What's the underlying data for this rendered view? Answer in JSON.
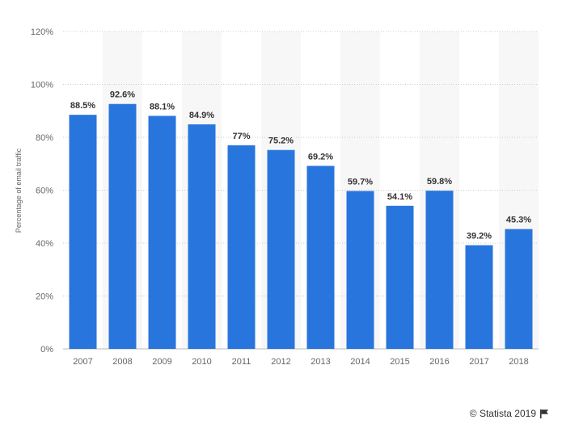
{
  "chart_data": {
    "type": "bar",
    "categories": [
      "2007",
      "2008",
      "2009",
      "2010",
      "2011",
      "2012",
      "2013",
      "2014",
      "2015",
      "2016",
      "2017",
      "2018"
    ],
    "values": [
      88.5,
      92.6,
      88.1,
      84.9,
      77,
      75.2,
      69.2,
      59.7,
      54.1,
      59.8,
      39.2,
      45.3
    ],
    "value_labels": [
      "88.5%",
      "92.6%",
      "88.1%",
      "84.9%",
      "77%",
      "75.2%",
      "69.2%",
      "59.7%",
      "54.1%",
      "59.8%",
      "39.2%",
      "45.3%"
    ],
    "ylabel": "Percentage of email traffic",
    "xlabel": "",
    "ylim": [
      0,
      120
    ],
    "yticks": [
      0,
      20,
      40,
      60,
      80,
      100,
      120
    ],
    "ytick_labels": [
      "0%",
      "20%",
      "40%",
      "60%",
      "80%",
      "100%",
      "120%"
    ],
    "grid": true,
    "bar_color": "#2876dd",
    "band_color": "#f7f7f7"
  },
  "footer": {
    "credit": "© Statista 2019",
    "flag_icon": "flag-icon"
  }
}
